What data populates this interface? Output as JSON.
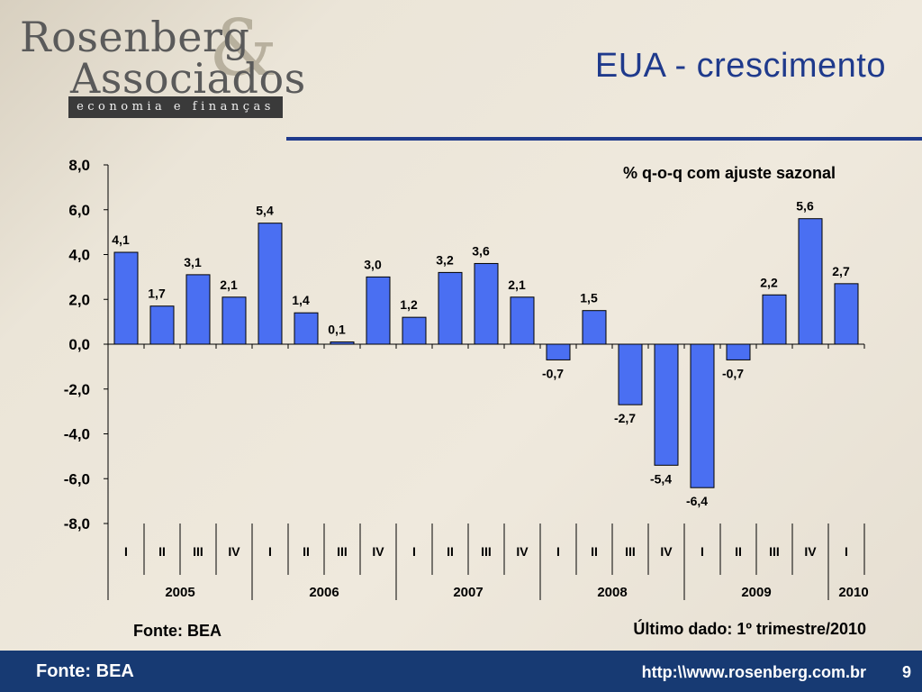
{
  "logo": {
    "line1": "Rosenberg",
    "ampersand": "&",
    "line2": "Associados",
    "tagline": "economia e finanças"
  },
  "title": "EUA - crescimento",
  "colors": {
    "accent": "#1f3a8c",
    "bar": "#4a6ff2",
    "footer": "#173a73"
  },
  "chart_data": {
    "type": "bar",
    "subtitle": "% q-o-q com ajuste sazonal",
    "categories": [
      "I",
      "II",
      "III",
      "IV",
      "I",
      "II",
      "III",
      "IV",
      "I",
      "II",
      "III",
      "IV",
      "I",
      "II",
      "III",
      "IV",
      "I",
      "II",
      "III",
      "IV",
      "I"
    ],
    "years": [
      {
        "label": "2005",
        "span": 4
      },
      {
        "label": "2006",
        "span": 4
      },
      {
        "label": "2007",
        "span": 4
      },
      {
        "label": "2008",
        "span": 4
      },
      {
        "label": "2009",
        "span": 4
      },
      {
        "label": "2010",
        "span": 1
      }
    ],
    "values": [
      4.1,
      1.7,
      3.1,
      2.1,
      5.4,
      1.4,
      0.1,
      3.0,
      1.2,
      3.2,
      3.6,
      2.1,
      -0.7,
      1.5,
      -2.7,
      -5.4,
      -6.4,
      -0.7,
      2.2,
      5.6,
      2.7
    ],
    "value_labels": [
      "4,1",
      "1,7",
      "3,1",
      "2,1",
      "5,4",
      "1,4",
      "0,1",
      "3,0",
      "1,2",
      "3,2",
      "3,6",
      "2,1",
      "-0,7",
      "1,5",
      "-2,7",
      "-5,4",
      "-6,4",
      "-0,7",
      "2,2",
      "5,6",
      "2,7"
    ],
    "ylim": [
      -8,
      8
    ],
    "yticks": [
      8,
      6,
      4,
      2,
      0,
      -2,
      -4,
      -6,
      -8
    ],
    "ytick_labels": [
      "8,0",
      "6,0",
      "4,0",
      "2,0",
      "0,0",
      "-2,0",
      "-4,0",
      "-6,0",
      "-8,0"
    ],
    "grid": false,
    "legend": "none"
  },
  "source_chart": "Fonte: BEA",
  "last_data": "Último dado: 1º trimestre/2010",
  "footer": {
    "source": "Fonte: BEA",
    "url": "http:\\\\www.rosenberg.com.br",
    "page": "9"
  }
}
